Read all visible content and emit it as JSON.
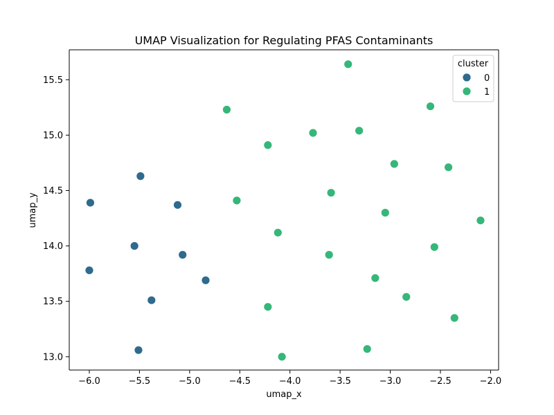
{
  "chart_data": {
    "type": "scatter",
    "title": "UMAP Visualization for Regulating PFAS Contaminants",
    "xlabel": "umap_x",
    "ylabel": "umap_y",
    "xlim": [
      -6.2,
      -1.92
    ],
    "ylim": [
      12.88,
      15.77
    ],
    "xticks": [
      -6.0,
      -5.5,
      -5.0,
      -4.5,
      -4.0,
      -3.5,
      -3.0,
      -2.5,
      -2.0
    ],
    "xtick_labels": [
      "−6.0",
      "−5.5",
      "−5.0",
      "−4.5",
      "−4.0",
      "−3.5",
      "−3.0",
      "−2.5",
      "−2.0"
    ],
    "yticks": [
      13.0,
      13.5,
      14.0,
      14.5,
      15.0,
      15.5
    ],
    "ytick_labels": [
      "13.0",
      "13.5",
      "14.0",
      "14.5",
      "15.0",
      "15.5"
    ],
    "grid": false,
    "legend": {
      "title": "cluster",
      "placement": "top-right"
    },
    "series": [
      {
        "name": "0",
        "color": "#2e6b8e",
        "points": [
          {
            "x": -5.99,
            "y": 14.39
          },
          {
            "x": -5.49,
            "y": 14.63
          },
          {
            "x": -5.12,
            "y": 14.37
          },
          {
            "x": -5.55,
            "y": 14.0
          },
          {
            "x": -6.0,
            "y": 13.78
          },
          {
            "x": -5.07,
            "y": 13.92
          },
          {
            "x": -4.84,
            "y": 13.69
          },
          {
            "x": -5.38,
            "y": 13.51
          },
          {
            "x": -5.51,
            "y": 13.06
          }
        ]
      },
      {
        "name": "1",
        "color": "#35b779",
        "points": [
          {
            "x": -3.42,
            "y": 15.64
          },
          {
            "x": -4.63,
            "y": 15.23
          },
          {
            "x": -2.6,
            "y": 15.26
          },
          {
            "x": -3.77,
            "y": 15.02
          },
          {
            "x": -3.31,
            "y": 15.04
          },
          {
            "x": -4.22,
            "y": 14.91
          },
          {
            "x": -2.96,
            "y": 14.74
          },
          {
            "x": -2.42,
            "y": 14.71
          },
          {
            "x": -3.59,
            "y": 14.48
          },
          {
            "x": -4.53,
            "y": 14.41
          },
          {
            "x": -3.05,
            "y": 14.3
          },
          {
            "x": -2.1,
            "y": 14.23
          },
          {
            "x": -4.12,
            "y": 14.12
          },
          {
            "x": -2.56,
            "y": 13.99
          },
          {
            "x": -3.61,
            "y": 13.92
          },
          {
            "x": -3.15,
            "y": 13.71
          },
          {
            "x": -2.84,
            "y": 13.54
          },
          {
            "x": -4.22,
            "y": 13.45
          },
          {
            "x": -2.36,
            "y": 13.35
          },
          {
            "x": -3.23,
            "y": 13.07
          },
          {
            "x": -4.08,
            "y": 13.0
          }
        ]
      }
    ]
  }
}
